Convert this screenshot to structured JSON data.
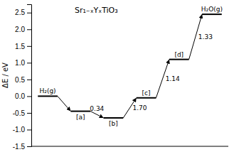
{
  "chart_data": {
    "type": "levels",
    "title": "Sr₁₋ₓYₓTiO₃",
    "ylabel": "ΔE / eV",
    "categories": [
      "H₂(g)",
      "[a]",
      "[b]",
      "[c]",
      "[d]",
      "H₂O(g)"
    ],
    "values": [
      0.0,
      -0.45,
      -0.65,
      -0.05,
      1.1,
      2.45
    ],
    "annotations": [
      {
        "text": "0.34",
        "from": "[a]",
        "to": "[b]"
      },
      {
        "text": "1.70",
        "from": "[b]",
        "to": "[c]"
      },
      {
        "text": "1.14",
        "from": "[c]",
        "to": "[d]"
      },
      {
        "text": "1.33",
        "from": "[d]",
        "to": "H₂O(g)"
      }
    ],
    "color": "black",
    "ylim": [
      -1.5,
      2.75
    ],
    "yticks": [
      -1.5,
      {
        "value": -1.0,
        "label": "-1.0"
      },
      -0.5,
      {
        "value": 0.0,
        "label": "0.0"
      },
      0.5,
      {
        "value": 1.0,
        "label": "1.0"
      },
      1.5,
      {
        "value": 2.0,
        "label": "2.0"
      },
      2.5
    ],
    "tick_labels": "y"
  }
}
